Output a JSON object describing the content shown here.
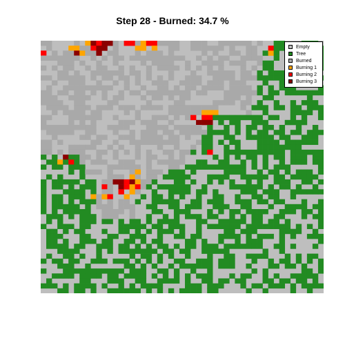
{
  "title": "Step 28 - Burned: 34.7 %",
  "legend": [
    {
      "label": "Empty",
      "color": "#bebebe"
    },
    {
      "label": "Tree",
      "color": "#228b22"
    },
    {
      "label": "Burned",
      "color": "#a9a9a9"
    },
    {
      "label": "Burning 1",
      "color": "#ffa500"
    },
    {
      "label": "Burning 2",
      "color": "#ff0000"
    },
    {
      "label": "Burning 3",
      "color": "#8b0000"
    }
  ],
  "grid": {
    "rows": 51,
    "cols": 51,
    "burned_percent": 34.7,
    "codes": {
      "E": "Empty",
      "T": "Tree",
      "B": "Burned",
      "1": "Burning 1",
      "2": "Burning 2",
      "3": "Burning 3"
    }
  }
}
